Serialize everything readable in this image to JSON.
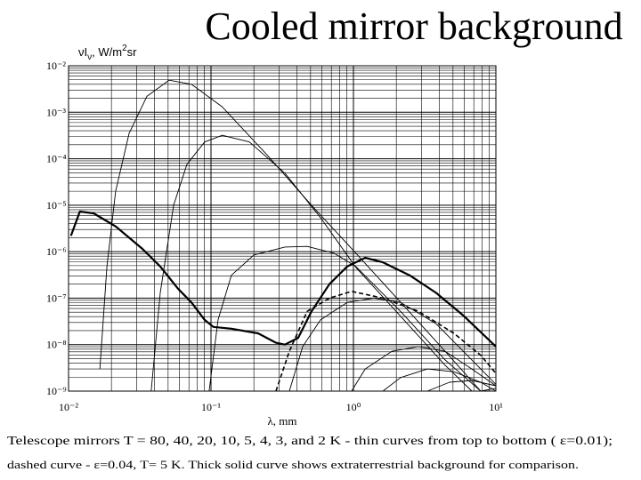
{
  "chart_data": {
    "type": "line",
    "title": "Cooled mirror background",
    "ylabel_parts": [
      "νI",
      "ν",
      ", W/m",
      "2",
      "sr"
    ],
    "xlabel": "λ, mm",
    "caption": [
      "Telescope mirrors T = 80, 40, 20, 10, 5, 4, 3, and 2 K - thin curves from top to bottom ( ε=0.01);",
      "dashed curve - ε=0.04, T= 5 K. Thick solid curve shows extraterrestrial background for comparison."
    ],
    "xscale": "log",
    "yscale": "log",
    "grid": true,
    "minor_grid": true,
    "xlim": [
      0.01,
      10
    ],
    "ylim": [
      1e-09,
      0.01
    ],
    "xticks": [
      {
        "value": 0.01,
        "label": "10⁻²"
      },
      {
        "value": 0.1,
        "label": "10⁻¹"
      },
      {
        "value": 1,
        "label": "10⁰"
      },
      {
        "value": 10,
        "label": "10¹"
      }
    ],
    "yticks": [
      {
        "value": 1e-09,
        "label": "10⁻⁹"
      },
      {
        "value": 1e-08,
        "label": "10⁻⁸"
      },
      {
        "value": 1e-07,
        "label": "10⁻⁷"
      },
      {
        "value": 1e-06,
        "label": "10⁻⁶"
      },
      {
        "value": 1e-05,
        "label": "10⁻⁵"
      },
      {
        "value": 0.0001,
        "label": "10⁻⁴"
      },
      {
        "value": 0.001,
        "label": "10⁻³"
      },
      {
        "value": 0.01,
        "label": "10⁻²"
      }
    ],
    "series": [
      {
        "color": "#000000",
        "style": "thin",
        "x": [
          0.0166,
          0.0186,
          0.0214,
          0.0266,
          0.0355,
          0.0508,
          0.0729,
          0.12,
          0.248,
          0.508,
          1.04,
          2.14,
          4.4,
          7.83
        ],
        "values": [
          3e-09,
          4.8e-07,
          2e-05,
          0.00035,
          0.0022,
          0.0049,
          0.004,
          0.0013,
          0.00012,
          1e-05,
          9.3e-07,
          8.2e-08,
          7.2e-09,
          1e-09
        ]
      },
      {
        "color": "#000000",
        "style": "thin",
        "x": [
          0.038,
          0.044,
          0.0546,
          0.0678,
          0.0903,
          0.12,
          0.186,
          0.33,
          0.587,
          1.04,
          2.14,
          4.4,
          6.78
        ],
        "values": [
          1e-09,
          1.3e-07,
          1e-05,
          7.6e-05,
          0.00023,
          0.00032,
          0.00023,
          4.9e-05,
          5.4e-06,
          4.6e-07,
          4.1e-08,
          3.6e-09,
          1e-09
        ]
      },
      {
        "color": "#000000",
        "style": "thin",
        "x": [
          0.097,
          0.112,
          0.139,
          0.2,
          0.33,
          0.473,
          0.729,
          1.04,
          2.14,
          4.4,
          7.83
        ],
        "values": [
          1e-09,
          3.4e-08,
          3.1e-07,
          8.5e-07,
          1.26e-06,
          1.3e-06,
          9.3e-07,
          4.8e-07,
          5.2e-08,
          4.7e-09,
          1e-09
        ]
      },
      {
        "color": "#000000",
        "style": "thin",
        "x": [
          0.355,
          0.44,
          0.587,
          0.904,
          1.39,
          2.14,
          3.81,
          6.78,
          10
        ],
        "values": [
          1e-09,
          9.1e-09,
          3.4e-08,
          8.1e-08,
          1e-07,
          8.1e-08,
          2.8e-08,
          4.7e-09,
          1.4e-09
        ]
      },
      {
        "color": "#000000",
        "style": "thin",
        "x": [
          0.97,
          1.21,
          1.86,
          2.86,
          4.4,
          6.78,
          10
        ],
        "values": [
          1e-09,
          3e-09,
          7.2e-09,
          9.1e-09,
          7.2e-09,
          3e-09,
          1.3e-09
        ]
      },
      {
        "color": "#000000",
        "style": "thin",
        "x": [
          1.61,
          2.14,
          3.3,
          5.08,
          7.83,
          10
        ],
        "values": [
          1e-09,
          1.95e-09,
          3e-09,
          2.6e-09,
          1.55e-09,
          1e-09
        ]
      },
      {
        "color": "#000000",
        "style": "thin",
        "x": [
          3.3,
          4.73,
          6.78,
          10
        ],
        "values": [
          1e-09,
          1.55e-09,
          1.7e-09,
          1.3e-09
        ]
      },
      {
        "color": "#000000",
        "style": "thin",
        "x": [
          7.83,
          10
        ],
        "values": [
          1e-09,
          1.15e-09
        ]
      },
      {
        "color": "#000000",
        "style": "dashed",
        "x": [
          0.286,
          0.355,
          0.473,
          0.678,
          0.97,
          1.61,
          2.86,
          5.08,
          7.83,
          10
        ],
        "values": [
          1e-09,
          7.2e-09,
          5.2e-08,
          1e-07,
          1.4e-07,
          1e-07,
          5.2e-08,
          1.75e-08,
          5.9e-09,
          2.4e-09
        ]
      },
      {
        "color": "#000000",
        "style": "thick",
        "x": [
          0.0104,
          0.012,
          0.015,
          0.0214,
          0.033,
          0.044,
          0.0587,
          0.0729,
          0.0903,
          0.104,
          0.139,
          0.214,
          0.286,
          0.33,
          0.409,
          0.508,
          0.678,
          0.904,
          1.21,
          1.61,
          2.48,
          3.81,
          5.87,
          10
        ],
        "values": [
          2.2e-06,
          7.3e-06,
          6.7e-06,
          3.5e-06,
          1.15e-06,
          4.8e-07,
          1.6e-07,
          8.1e-08,
          3.4e-08,
          2.4e-08,
          2.2e-08,
          1.75e-08,
          1.1e-08,
          1e-08,
          1.4e-08,
          5.2e-08,
          2e-07,
          4.8e-07,
          7.4e-07,
          5.9e-07,
          3.1e-07,
          1.3e-07,
          4.3e-08,
          9.1e-09
        ]
      }
    ]
  }
}
